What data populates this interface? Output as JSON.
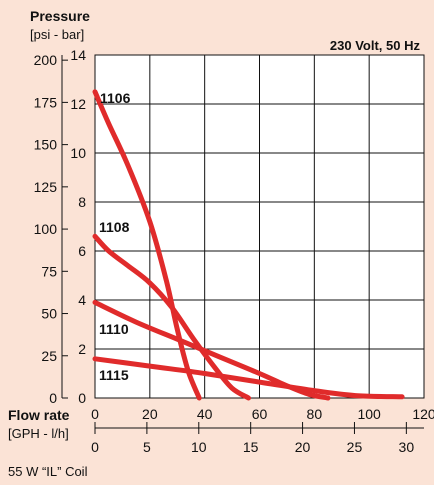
{
  "chart_data": {
    "type": "line",
    "title": "Pressure",
    "units_primary_y": "[psi - bar]",
    "subtitle": "230 Volt, 50 Hz",
    "xlabel": "Flow rate",
    "xlabel_units": "[GPH - l/h]",
    "footnote": "55 W “IL” Coil",
    "psi_ticks": [
      0,
      25,
      50,
      75,
      100,
      125,
      150,
      175,
      200
    ],
    "bar_ticks": [
      0,
      2,
      4,
      6,
      8,
      10,
      12,
      14
    ],
    "gph_ticks": [
      0,
      20,
      40,
      60,
      80,
      100,
      120
    ],
    "lh_ticks": [
      0,
      5,
      10,
      15,
      20,
      25,
      30
    ],
    "xlim_gph": [
      0,
      120
    ],
    "ylim_bar": [
      0,
      14
    ],
    "grid": true,
    "line_color": "#e02b2b",
    "series": [
      {
        "name": "1106",
        "x": [
          0,
          5,
          12,
          20,
          26,
          30,
          34,
          38
        ],
        "y": [
          12.5,
          11.2,
          9.5,
          7.2,
          4.8,
          2.8,
          1.1,
          0
        ]
      },
      {
        "name": "1108",
        "x": [
          0,
          5,
          12,
          20,
          28,
          36,
          44,
          50,
          56
        ],
        "y": [
          6.6,
          6.0,
          5.4,
          4.7,
          3.7,
          2.4,
          1.2,
          0.4,
          0
        ]
      },
      {
        "name": "1110",
        "x": [
          0,
          15,
          30,
          45,
          60,
          70,
          78,
          85
        ],
        "y": [
          3.9,
          3.1,
          2.4,
          1.7,
          1.0,
          0.5,
          0.15,
          0
        ]
      },
      {
        "name": "1115",
        "x": [
          0,
          20,
          40,
          60,
          80,
          95,
          112
        ],
        "y": [
          1.6,
          1.3,
          1.0,
          0.65,
          0.3,
          0.1,
          0.05
        ]
      }
    ]
  }
}
